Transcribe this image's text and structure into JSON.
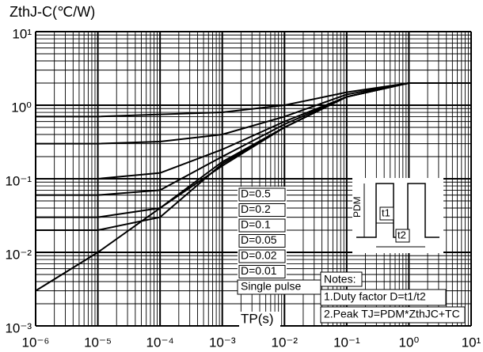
{
  "chart_data": {
    "type": "line",
    "y_label": "ZthJ-C(℃/W)",
    "x_label": "TP(s)",
    "log_x": true,
    "log_y": true,
    "grid": true,
    "minor_grid": true,
    "x": [
      1e-06,
      1e-05,
      0.0001,
      0.001,
      0.01,
      0.1,
      1,
      10
    ],
    "series": [
      {
        "name": "D=0.5",
        "color": "#000000",
        "values": [
          0.7,
          0.7,
          0.75,
          0.8,
          1.0,
          1.5,
          2.0,
          2.0
        ]
      },
      {
        "name": "D=0.2",
        "color": "#000000",
        "values": [
          0.3,
          0.3,
          0.32,
          0.4,
          0.7,
          1.4,
          2.0,
          2.0
        ]
      },
      {
        "name": "D=0.1",
        "color": "#000000",
        "values": [
          0.1,
          0.1,
          0.12,
          0.25,
          0.6,
          1.3,
          2.0,
          2.0
        ]
      },
      {
        "name": "D=0.05",
        "color": "#000000",
        "values": [
          0.06,
          0.06,
          0.07,
          0.2,
          0.55,
          1.3,
          2.0,
          2.0
        ]
      },
      {
        "name": "D=0.02",
        "color": "#000000",
        "values": [
          0.03,
          0.03,
          0.04,
          0.17,
          0.5,
          1.3,
          2.0,
          2.0
        ]
      },
      {
        "name": "D=0.01",
        "color": "#000000",
        "values": [
          0.02,
          0.02,
          0.03,
          0.16,
          0.5,
          1.3,
          2.0,
          2.0
        ]
      },
      {
        "name": "Single pulse",
        "color": "#000000",
        "values": [
          0.003,
          0.01,
          0.04,
          0.15,
          0.5,
          1.3,
          2.0,
          2.0
        ]
      }
    ],
    "xlim": [
      1e-06,
      10
    ],
    "ylim": [
      0.001,
      10
    ],
    "xticks": [
      {
        "value": 1e-06,
        "label": "10⁻⁶"
      },
      {
        "value": 1e-05,
        "label": "10⁻⁵"
      },
      {
        "value": 0.0001,
        "label": "10⁻⁴"
      },
      {
        "value": 0.001,
        "label": "10⁻³"
      },
      {
        "value": 0.01,
        "label": "10⁻²"
      },
      {
        "value": 0.1,
        "label": "10⁻¹"
      },
      {
        "value": 1,
        "label": "10⁰"
      },
      {
        "value": 10,
        "label": "10¹"
      }
    ],
    "yticks": [
      {
        "value": 0.001,
        "label": "10⁻³"
      },
      {
        "value": 0.01,
        "label": "10⁻²"
      },
      {
        "value": 0.1,
        "label": "10⁻¹"
      },
      {
        "value": 1,
        "label": "10⁰"
      },
      {
        "value": 10,
        "label": "10¹"
      }
    ],
    "notes": [
      "Notes:",
      "1.Duty factor D=t1/t2",
      "2.Peak TJ=PDM*ZthJC+TC"
    ],
    "diagram_labels": [
      "PDM",
      "t1",
      "t2"
    ]
  }
}
